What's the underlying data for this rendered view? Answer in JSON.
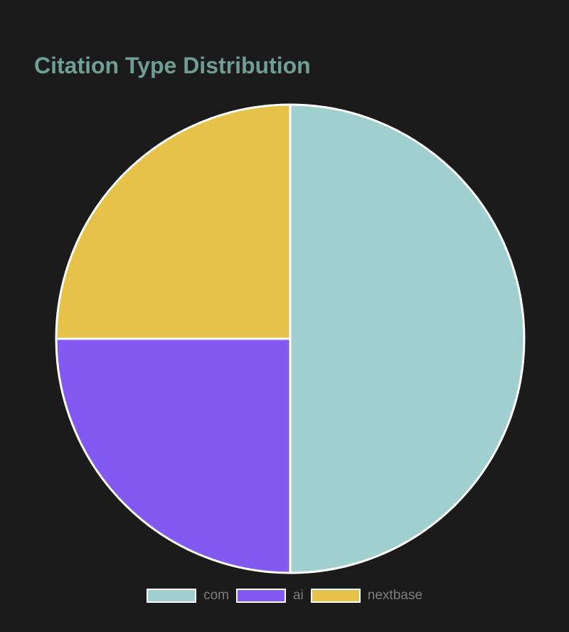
{
  "chart_data": {
    "type": "pie",
    "title": "Citation Type Distribution",
    "categories": [
      "com",
      "ai",
      "nextbase"
    ],
    "values": [
      50,
      25,
      25
    ],
    "colors": [
      "#a0cfcf",
      "#8259f1",
      "#e6c24a"
    ],
    "slice_border_color": "#ffffff",
    "legend": "bottom"
  },
  "theme": {
    "background": "#1b1b1b",
    "title_color": "#6f9e92",
    "legend_text_color": "#7d7d7d"
  }
}
